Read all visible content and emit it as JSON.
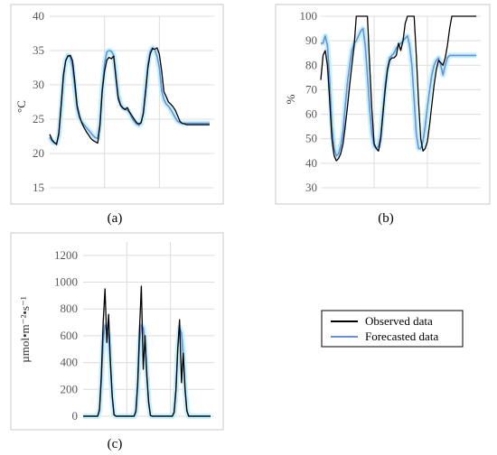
{
  "legend": {
    "observed_label": "Observed data",
    "forecasted_label": "Forecasted data"
  },
  "colors": {
    "observed": "#000000",
    "forecasted": "#6a8fd8",
    "glow": "#bfeffa"
  },
  "chart_data": [
    {
      "type": "line",
      "panel_label": "(a)",
      "ylabel": "°C",
      "ylim": [
        15,
        40
      ],
      "yticks": [
        15,
        20,
        25,
        30,
        35,
        40
      ],
      "xlim": [
        0,
        72
      ],
      "grid": true,
      "series": [
        {
          "name": "Observed data",
          "x": [
            0,
            1,
            2,
            3,
            4,
            5,
            6,
            7,
            8,
            9,
            10,
            11,
            12,
            13,
            14,
            15,
            16,
            17,
            18,
            19,
            20,
            21,
            22,
            23,
            24,
            25,
            26,
            27,
            28,
            29,
            30,
            31,
            32,
            33,
            34,
            35,
            36,
            37,
            38,
            39,
            40,
            41,
            42,
            43,
            44,
            45,
            46,
            47,
            48,
            49,
            50,
            51,
            52,
            53,
            54,
            55,
            56,
            57,
            58,
            59,
            60,
            61,
            62,
            63,
            64,
            65,
            66,
            67,
            68,
            69,
            70
          ],
          "values": [
            22.8,
            22,
            21.6,
            21.3,
            23,
            27,
            31.5,
            33.5,
            34.2,
            34.3,
            33.5,
            30.5,
            27,
            25.5,
            24.5,
            23.8,
            23.2,
            22.7,
            22.2,
            21.9,
            21.7,
            21.5,
            24,
            29,
            32,
            33.6,
            34,
            33.8,
            34.2,
            31,
            28,
            27,
            26.6,
            26.4,
            26.7,
            26,
            25.5,
            25,
            24.5,
            24.3,
            24.5,
            25.8,
            29,
            32.5,
            34.5,
            35.3,
            35.2,
            35.4,
            34.5,
            32,
            29,
            28.3,
            27.5,
            27.2,
            26.8,
            26.3,
            25.5,
            24.7,
            24.4,
            24.3,
            24.2,
            24.2,
            24.2,
            24.2,
            24.2,
            24.2,
            24.2,
            24.2,
            24.2,
            24.2,
            24.2
          ]
        },
        {
          "name": "Forecasted data",
          "x": [
            0,
            1,
            2,
            3,
            4,
            5,
            6,
            7,
            8,
            9,
            10,
            11,
            12,
            13,
            14,
            15,
            16,
            17,
            18,
            19,
            20,
            21,
            22,
            23,
            24,
            25,
            26,
            27,
            28,
            29,
            30,
            31,
            32,
            33,
            34,
            35,
            36,
            37,
            38,
            39,
            40,
            41,
            42,
            43,
            44,
            45,
            46,
            47,
            48,
            49,
            50,
            51,
            52,
            53,
            54,
            55,
            56,
            57,
            58,
            59,
            60,
            61,
            62,
            63,
            64,
            65,
            66,
            67,
            68,
            69,
            70
          ],
          "values": [
            22.4,
            21.8,
            21.5,
            21.5,
            22.6,
            26.5,
            31,
            33.6,
            34.3,
            34,
            32.5,
            29.5,
            26.6,
            25.2,
            24.6,
            24.2,
            23.8,
            23.4,
            23,
            22.6,
            22.3,
            22.2,
            24.5,
            29.5,
            33,
            34.8,
            35,
            34.9,
            34.3,
            31.5,
            28.5,
            27.2,
            26.7,
            26.5,
            26.3,
            25.9,
            25.2,
            24.7,
            24.3,
            24.1,
            24.4,
            26,
            29.5,
            33,
            34.9,
            35.4,
            35.1,
            34.2,
            32.5,
            29.2,
            27.9,
            27.2,
            26.9,
            26.4,
            25.8,
            25.2,
            24.7,
            24.5,
            24.4,
            24.4,
            24.4,
            24.4,
            24.4,
            24.4,
            24.4,
            24.4,
            24.4,
            24.4,
            24.4,
            24.4,
            24.4
          ]
        }
      ]
    },
    {
      "type": "line",
      "panel_label": "(b)",
      "ylabel": "%",
      "ylim": [
        30,
        100
      ],
      "yticks": [
        30,
        40,
        50,
        60,
        70,
        80,
        90,
        100
      ],
      "xlim": [
        0,
        72
      ],
      "grid": true,
      "series": [
        {
          "name": "Observed data",
          "x": [
            0,
            1,
            2,
            3,
            4,
            5,
            6,
            7,
            8,
            9,
            10,
            11,
            12,
            13,
            14,
            15,
            16,
            17,
            18,
            19,
            20,
            21,
            22,
            23,
            24,
            25,
            26,
            27,
            28,
            29,
            30,
            31,
            32,
            33,
            34,
            35,
            36,
            37,
            38,
            39,
            40,
            41,
            42,
            43,
            44,
            45,
            46,
            47,
            48,
            49,
            50,
            51,
            52,
            53,
            54,
            55,
            56,
            57,
            58,
            59,
            60,
            61,
            62,
            63,
            64,
            65,
            66,
            67,
            68,
            69,
            70
          ],
          "values": [
            74,
            84,
            86,
            80,
            66,
            50,
            43,
            41,
            42,
            44,
            48,
            55,
            63,
            72,
            80,
            88,
            100,
            100,
            100,
            100,
            100,
            100,
            80,
            62,
            48,
            46,
            45,
            50,
            60,
            70,
            78,
            82,
            83,
            83,
            84,
            89,
            86,
            90,
            97,
            100,
            100,
            100,
            100,
            84,
            65,
            50,
            45,
            46,
            49,
            56,
            64,
            72,
            78,
            82,
            81,
            80,
            83,
            88,
            95,
            100,
            100,
            100,
            100,
            100,
            100,
            100,
            100,
            100,
            100,
            100,
            100
          ]
        },
        {
          "name": "Forecasted data",
          "x": [
            0,
            1,
            2,
            3,
            4,
            5,
            6,
            7,
            8,
            9,
            10,
            11,
            12,
            13,
            14,
            15,
            16,
            17,
            18,
            19,
            20,
            21,
            22,
            23,
            24,
            25,
            26,
            27,
            28,
            29,
            30,
            31,
            32,
            33,
            34,
            35,
            36,
            37,
            38,
            39,
            40,
            41,
            42,
            43,
            44,
            45,
            46,
            47,
            48,
            49,
            50,
            51,
            52,
            53,
            54,
            55,
            56,
            57,
            58,
            59,
            60,
            61,
            62,
            63,
            64,
            65,
            66,
            67,
            68,
            69,
            70
          ],
          "values": [
            89,
            89,
            92,
            88,
            74,
            55,
            46,
            43,
            44,
            47,
            53,
            63,
            73,
            80,
            86,
            89,
            90,
            92,
            94,
            95,
            88,
            76,
            62,
            52,
            47,
            46,
            47,
            52,
            62,
            72,
            79,
            83,
            84,
            85,
            87,
            88,
            89,
            90,
            91,
            92,
            88,
            80,
            66,
            52,
            46,
            46,
            49,
            55,
            63,
            70,
            76,
            80,
            82,
            83,
            80,
            76,
            80,
            83,
            84,
            84,
            84,
            84,
            84,
            84,
            84,
            84,
            84,
            84,
            84,
            84,
            84
          ]
        }
      ]
    },
    {
      "type": "line",
      "panel_label": "(c)",
      "ylabel": "µmol•m⁻²•s⁻¹",
      "ylim": [
        0,
        1300
      ],
      "yticks": [
        0,
        200,
        400,
        600,
        800,
        1000,
        1200
      ],
      "xlim": [
        0,
        72
      ],
      "grid": true,
      "series": [
        {
          "name": "Observed data",
          "x": [
            0,
            1,
            2,
            3,
            4,
            5,
            6,
            7,
            8,
            9,
            10,
            11,
            12,
            13,
            14,
            15,
            16,
            17,
            18,
            19,
            20,
            21,
            22,
            23,
            24,
            25,
            26,
            27,
            28,
            29,
            30,
            31,
            32,
            33,
            34,
            35,
            36,
            37,
            38,
            39,
            40,
            41,
            42,
            43,
            44,
            45,
            46,
            47,
            48,
            49,
            50,
            51,
            52,
            53,
            54,
            55,
            56,
            57,
            58,
            59,
            60,
            61,
            62,
            63,
            64,
            65,
            66,
            67,
            68,
            69,
            70
          ],
          "values": [
            0,
            0,
            0,
            0,
            0,
            0,
            0,
            0,
            0,
            50,
            300,
            700,
            950,
            550,
            760,
            400,
            150,
            10,
            0,
            0,
            0,
            0,
            0,
            0,
            0,
            0,
            0,
            0,
            0,
            40,
            250,
            650,
            970,
            350,
            600,
            300,
            100,
            5,
            0,
            0,
            0,
            0,
            0,
            0,
            0,
            0,
            0,
            0,
            0,
            0,
            30,
            200,
            500,
            720,
            250,
            470,
            200,
            40,
            0,
            0,
            0,
            0,
            0,
            0,
            0,
            0,
            0,
            0,
            0,
            0,
            0
          ]
        },
        {
          "name": "Forecasted data",
          "x": [
            0,
            1,
            2,
            3,
            4,
            5,
            6,
            7,
            8,
            9,
            10,
            11,
            12,
            13,
            14,
            15,
            16,
            17,
            18,
            19,
            20,
            21,
            22,
            23,
            24,
            25,
            26,
            27,
            28,
            29,
            30,
            31,
            32,
            33,
            34,
            35,
            36,
            37,
            38,
            39,
            40,
            41,
            42,
            43,
            44,
            45,
            46,
            47,
            48,
            49,
            50,
            51,
            52,
            53,
            54,
            55,
            56,
            57,
            58,
            59,
            60,
            61,
            62,
            63,
            64,
            65,
            66,
            67,
            68,
            69,
            70
          ],
          "values": [
            0,
            0,
            0,
            0,
            0,
            0,
            0,
            0,
            0,
            40,
            260,
            560,
            680,
            640,
            600,
            390,
            140,
            10,
            0,
            0,
            0,
            0,
            0,
            0,
            0,
            0,
            0,
            0,
            0,
            30,
            230,
            550,
            680,
            660,
            560,
            310,
            110,
            5,
            0,
            0,
            0,
            0,
            0,
            0,
            0,
            0,
            0,
            0,
            0,
            0,
            25,
            190,
            500,
            660,
            620,
            460,
            200,
            40,
            0,
            0,
            0,
            0,
            0,
            0,
            0,
            0,
            0,
            0,
            0,
            0,
            0
          ]
        }
      ]
    }
  ]
}
